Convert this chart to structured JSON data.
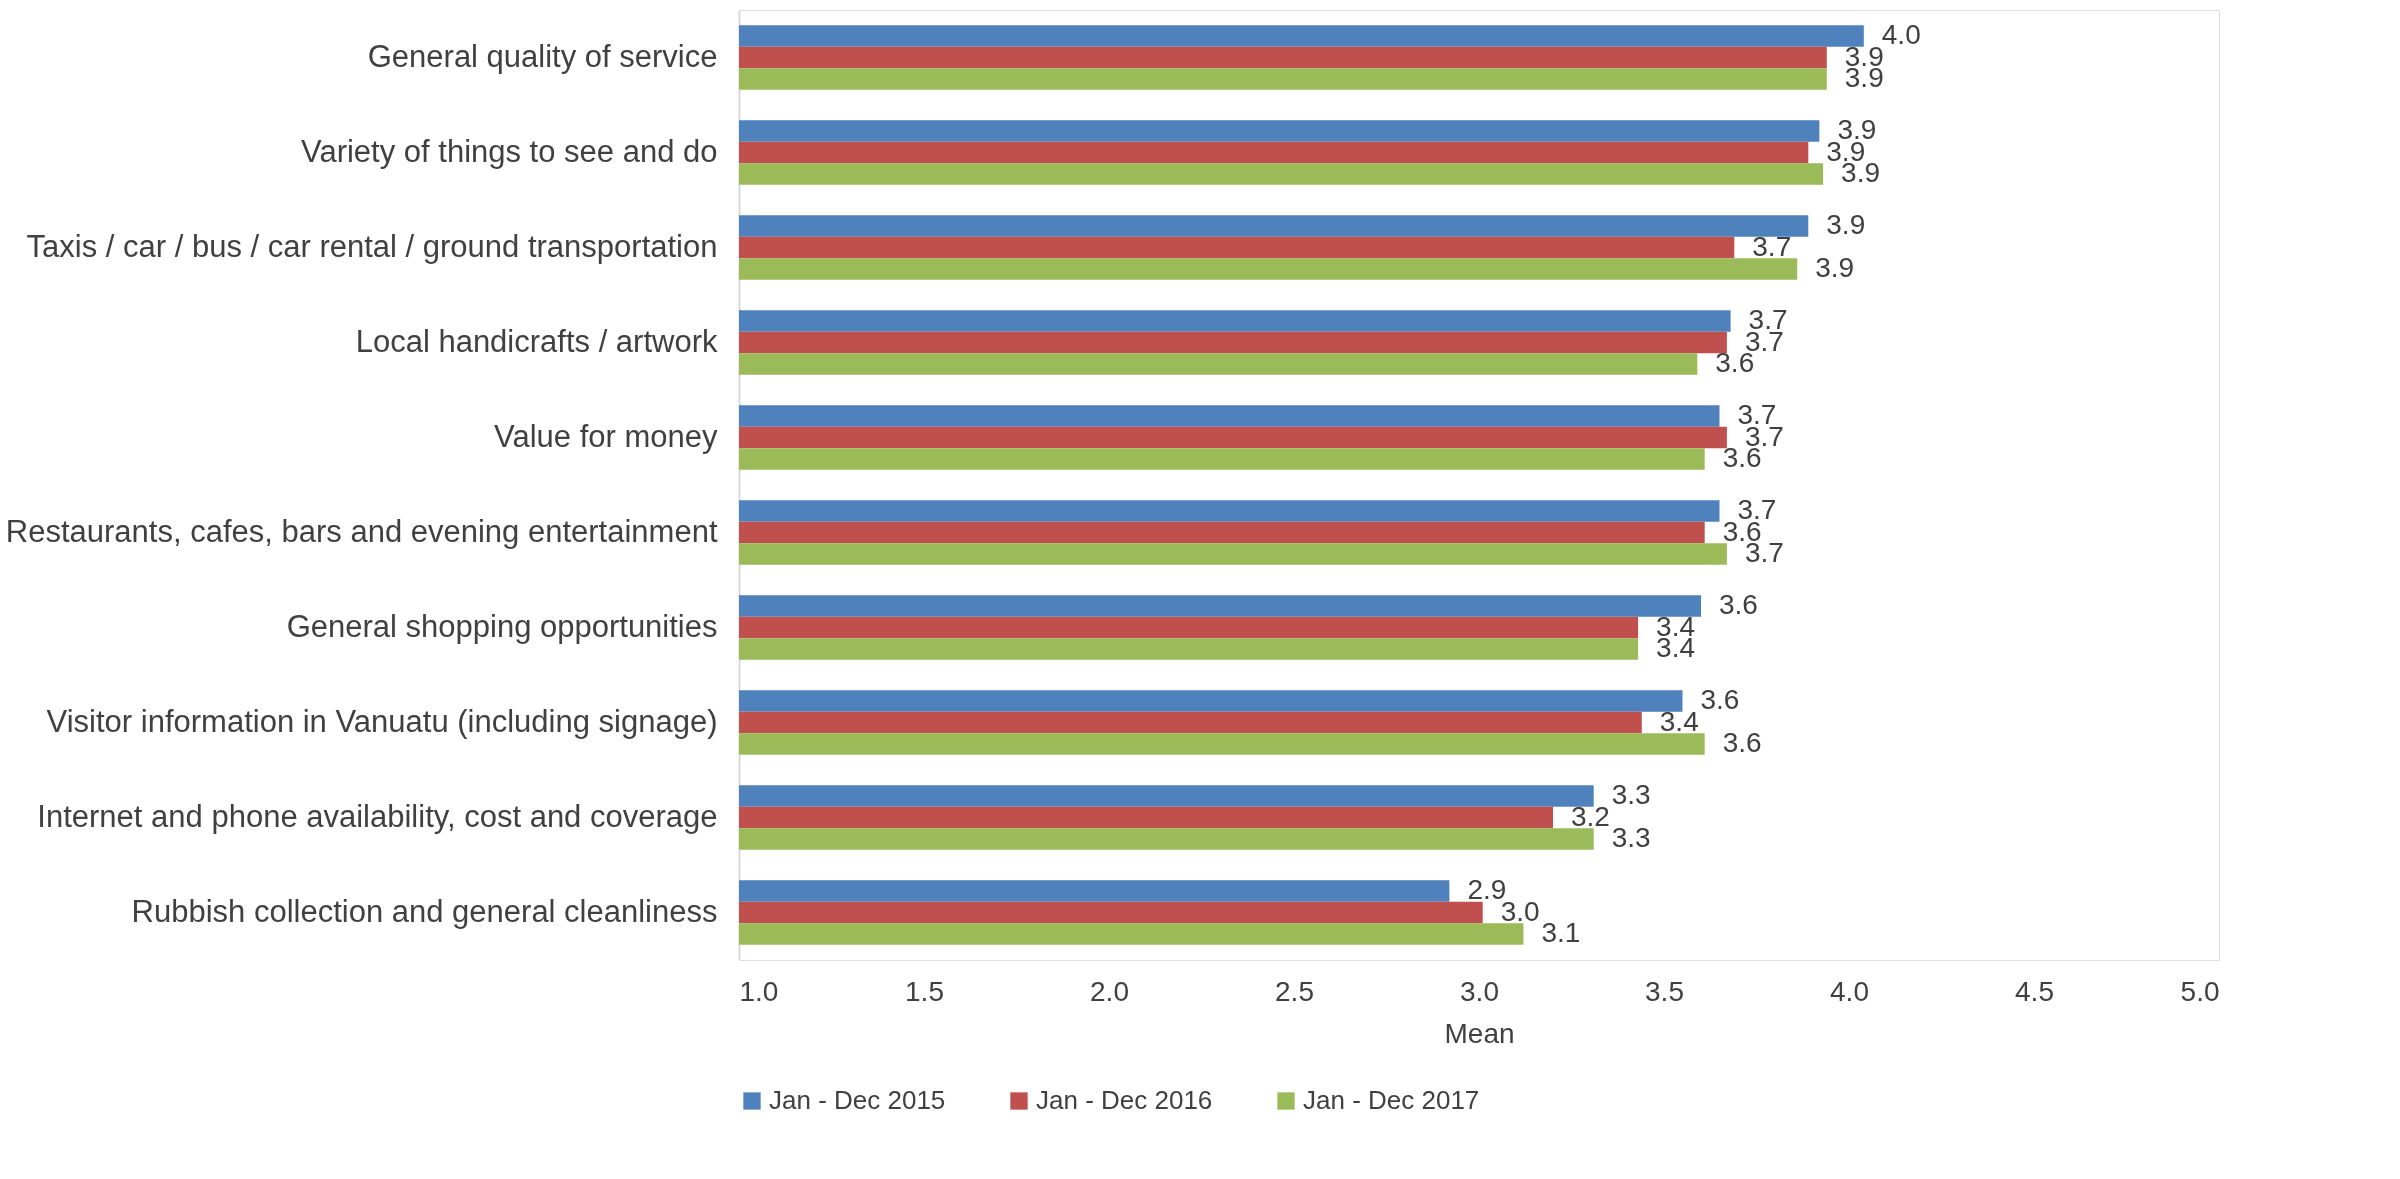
{
  "chart_data": {
    "type": "bar",
    "orientation": "horizontal",
    "xlabel": "Mean",
    "categories": [
      "General quality of service",
      "Variety of things to see and do",
      "Taxis / car / bus / car rental / ground transportation",
      "Local handicrafts / artwork",
      "Value for money",
      "Restaurants, cafes, bars and evening entertainment",
      "General shopping opportunities",
      "Visitor information in Vanuatu (including signage)",
      "Internet and phone availability, cost and coverage",
      "Rubbish collection and general cleanliness"
    ],
    "series": [
      {
        "name": "Jan - Dec 2015",
        "color": "#4f81bd",
        "values": [
          4.04,
          3.92,
          3.89,
          3.68,
          3.65,
          3.65,
          3.6,
          3.55,
          3.31,
          2.92
        ],
        "value_labels": [
          "4.0",
          "3.9",
          "3.9",
          "3.7",
          "3.7",
          "3.7",
          "3.6",
          "3.6",
          "3.3",
          "2.9"
        ]
      },
      {
        "name": "Jan - Dec 2016",
        "color": "#c0504d",
        "values": [
          3.94,
          3.89,
          3.69,
          3.67,
          3.67,
          3.61,
          3.43,
          3.44,
          3.2,
          3.01
        ],
        "value_labels": [
          "3.9",
          "3.9",
          "3.7",
          "3.7",
          "3.7",
          "3.6",
          "3.4",
          "3.4",
          "3.2",
          "3.0"
        ]
      },
      {
        "name": "Jan - Dec 2017",
        "color": "#9bbb59",
        "values": [
          3.94,
          3.93,
          3.86,
          3.59,
          3.61,
          3.67,
          3.43,
          3.61,
          3.31,
          3.12
        ],
        "value_labels": [
          "3.9",
          "3.9",
          "3.9",
          "3.6",
          "3.6",
          "3.7",
          "3.4",
          "3.6",
          "3.3",
          "3.1"
        ]
      }
    ],
    "xlim": [
      1.0,
      5.0
    ],
    "xticks": [
      {
        "value": 1.0,
        "label": "1.0"
      },
      {
        "value": 1.5,
        "label": "1.5"
      },
      {
        "value": 2.0,
        "label": "2.0"
      },
      {
        "value": 2.5,
        "label": "2.5"
      },
      {
        "value": 3.0,
        "label": "3.0"
      },
      {
        "value": 3.5,
        "label": "3.5"
      },
      {
        "value": 4.0,
        "label": "4.0"
      },
      {
        "value": 4.5,
        "label": "4.5"
      },
      {
        "value": 5.0,
        "label": "5.0"
      }
    ],
    "grid": false,
    "legend": "bottom"
  }
}
